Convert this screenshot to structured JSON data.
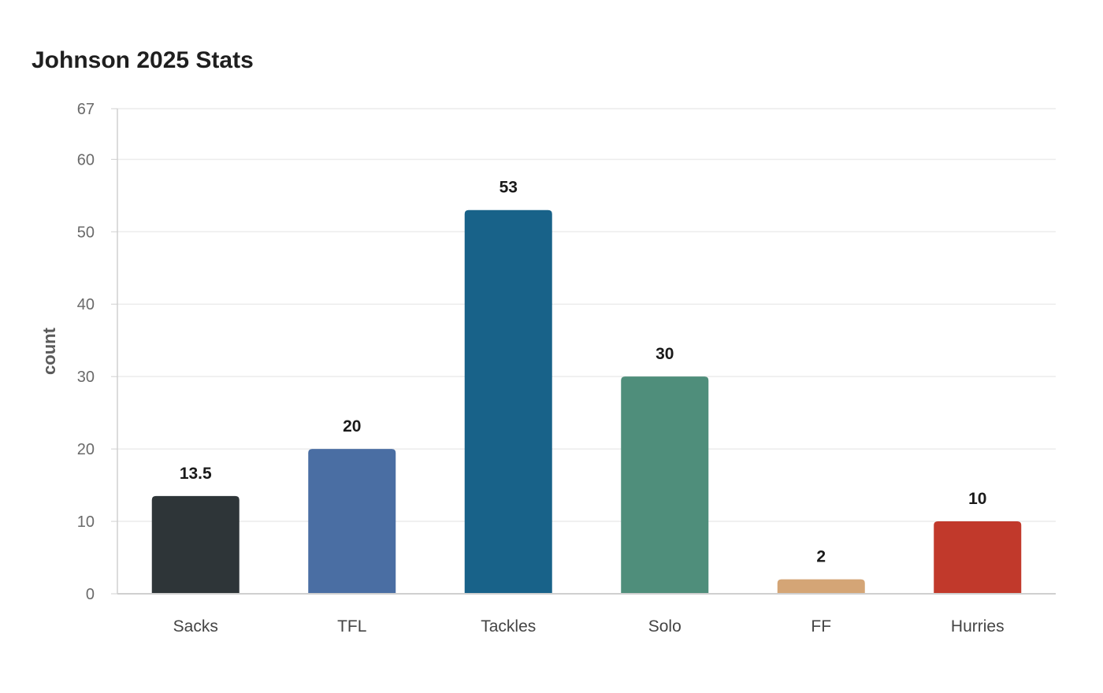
{
  "chart_data": {
    "type": "bar",
    "title": "Johnson 2025 Stats",
    "xlabel": "",
    "ylabel": "count",
    "categories": [
      "Sacks",
      "TFL",
      "Tackles",
      "Solo",
      "FF",
      "Hurries"
    ],
    "values": [
      13.5,
      20,
      53,
      30,
      2,
      10
    ],
    "value_labels": [
      "13.5",
      "20",
      "53",
      "30",
      "2",
      "10"
    ],
    "colors": [
      "#2e3538",
      "#4a6ea3",
      "#186289",
      "#4f8e7b",
      "#d4a576",
      "#c1392b"
    ],
    "ylim": [
      0,
      67
    ],
    "yticks": [
      0,
      10,
      20,
      30,
      40,
      50,
      60,
      67
    ],
    "grid": true,
    "legend": "none"
  }
}
